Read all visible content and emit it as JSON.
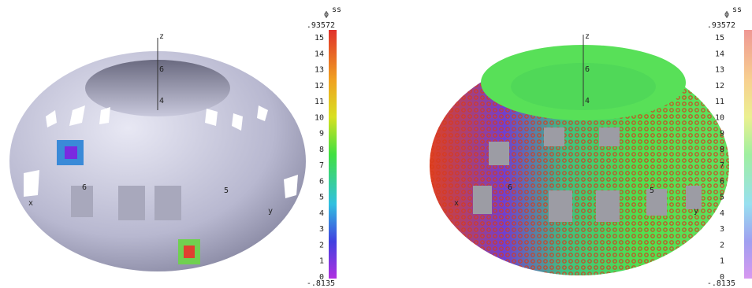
{
  "panels": [
    {
      "colorbar": {
        "symbol": "ϕ",
        "superscript": "ss",
        "max_label": ".93572",
        "ticks": [
          "15",
          "14",
          "13",
          "12",
          "11",
          "10",
          "9",
          "8",
          "7",
          "6",
          "5",
          "4",
          "3",
          "2",
          "1",
          "0"
        ],
        "min_label": "-.8135"
      },
      "axis_labels": [
        "z",
        "6",
        "4",
        "6",
        "x",
        "5",
        "y"
      ]
    },
    {
      "colorbar": {
        "symbol": "ϕ",
        "superscript": "ss",
        "max_label": ".93572",
        "ticks": [
          "15",
          "14",
          "13",
          "12",
          "11",
          "10",
          "9",
          "8",
          "7",
          "6",
          "5",
          "4",
          "3",
          "2",
          "1",
          "0"
        ],
        "min_label": "-.8135"
      },
      "axis_labels": [
        "z",
        "6",
        "4",
        "6",
        "x",
        "5",
        "y"
      ]
    }
  ]
}
